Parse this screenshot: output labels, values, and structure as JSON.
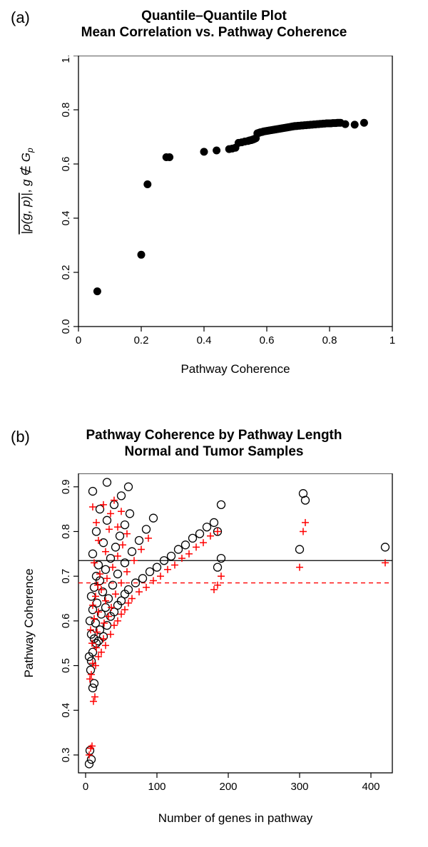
{
  "panelA": {
    "label": "(a)",
    "label_fontsize": 22,
    "title_line1": "Quantile–Quantile Plot",
    "title_line2": "Mean Correlation vs. Pathway Coherence",
    "title_fontsize": 19,
    "xlabel": "Pathway Coherence",
    "ylabel_prefix": "|ρ(g, p)|",
    "ylabel_middle": ", ",
    "ylabel_g": "g",
    "ylabel_notin": " ∉ ",
    "ylabel_Gp": "G",
    "ylabel_Gp_sub": "p",
    "label_fontsize_axis": 17,
    "tick_fontsize": 15,
    "xlim": [
      0,
      1
    ],
    "ylim": [
      0,
      1
    ],
    "xticks": [
      0.0,
      0.2,
      0.4,
      0.6,
      0.8,
      1.0
    ],
    "yticks": [
      0.0,
      0.2,
      0.4,
      0.6,
      0.8,
      1.0
    ],
    "point_color": "#000000",
    "point_radius": 5.5,
    "bg": "#ffffff",
    "box_color": "#000000",
    "points": [
      [
        0.06,
        0.13
      ],
      [
        0.2,
        0.265
      ],
      [
        0.22,
        0.525
      ],
      [
        0.28,
        0.625
      ],
      [
        0.29,
        0.625
      ],
      [
        0.4,
        0.645
      ],
      [
        0.44,
        0.65
      ],
      [
        0.48,
        0.655
      ],
      [
        0.49,
        0.657
      ],
      [
        0.5,
        0.66
      ],
      [
        0.51,
        0.678
      ],
      [
        0.52,
        0.68
      ],
      [
        0.53,
        0.683
      ],
      [
        0.54,
        0.685
      ],
      [
        0.545,
        0.687
      ],
      [
        0.55,
        0.688
      ],
      [
        0.555,
        0.69
      ],
      [
        0.56,
        0.692
      ],
      [
        0.565,
        0.695
      ],
      [
        0.57,
        0.713
      ],
      [
        0.575,
        0.715
      ],
      [
        0.58,
        0.717
      ],
      [
        0.585,
        0.718
      ],
      [
        0.59,
        0.72
      ],
      [
        0.595,
        0.721
      ],
      [
        0.6,
        0.722
      ],
      [
        0.605,
        0.723
      ],
      [
        0.61,
        0.724
      ],
      [
        0.615,
        0.725
      ],
      [
        0.62,
        0.726
      ],
      [
        0.625,
        0.727
      ],
      [
        0.63,
        0.728
      ],
      [
        0.635,
        0.729
      ],
      [
        0.64,
        0.73
      ],
      [
        0.645,
        0.731
      ],
      [
        0.65,
        0.732
      ],
      [
        0.655,
        0.733
      ],
      [
        0.66,
        0.734
      ],
      [
        0.665,
        0.735
      ],
      [
        0.67,
        0.736
      ],
      [
        0.675,
        0.737
      ],
      [
        0.68,
        0.738
      ],
      [
        0.685,
        0.739
      ],
      [
        0.69,
        0.74
      ],
      [
        0.695,
        0.74
      ],
      [
        0.7,
        0.741
      ],
      [
        0.705,
        0.741
      ],
      [
        0.71,
        0.742
      ],
      [
        0.715,
        0.742
      ],
      [
        0.72,
        0.743
      ],
      [
        0.725,
        0.743
      ],
      [
        0.73,
        0.744
      ],
      [
        0.735,
        0.744
      ],
      [
        0.74,
        0.745
      ],
      [
        0.745,
        0.745
      ],
      [
        0.75,
        0.746
      ],
      [
        0.755,
        0.746
      ],
      [
        0.76,
        0.747
      ],
      [
        0.765,
        0.747
      ],
      [
        0.77,
        0.748
      ],
      [
        0.775,
        0.748
      ],
      [
        0.78,
        0.749
      ],
      [
        0.785,
        0.749
      ],
      [
        0.79,
        0.75
      ],
      [
        0.795,
        0.75
      ],
      [
        0.8,
        0.75
      ],
      [
        0.805,
        0.75
      ],
      [
        0.81,
        0.751
      ],
      [
        0.815,
        0.751
      ],
      [
        0.82,
        0.751
      ],
      [
        0.825,
        0.752
      ],
      [
        0.83,
        0.752
      ],
      [
        0.835,
        0.752
      ],
      [
        0.85,
        0.747
      ],
      [
        0.88,
        0.745
      ],
      [
        0.91,
        0.752
      ]
    ]
  },
  "panelB": {
    "label": "(b)",
    "label_fontsize": 22,
    "title_line1": "Pathway Coherence by Pathway Length",
    "title_line2": "Normal and Tumor Samples",
    "title_fontsize": 19,
    "xlabel": "Number of genes in pathway",
    "ylabel": "Pathway Coherence",
    "label_fontsize_axis": 17,
    "tick_fontsize": 15,
    "xlim": [
      -10,
      430
    ],
    "ylim": [
      0.26,
      0.93
    ],
    "xticks": [
      0,
      100,
      200,
      300,
      400
    ],
    "yticks": [
      0.3,
      0.4,
      0.5,
      0.6,
      0.7,
      0.8,
      0.9
    ],
    "bg": "#ffffff",
    "box_color": "#000000",
    "circle_color": "#000000",
    "circle_radius": 5.5,
    "circle_stroke": 1.3,
    "plus_color": "#ff0000",
    "plus_size": 10,
    "plus_stroke": 1.5,
    "hline_black": 0.735,
    "hline_red": 0.685,
    "hline_red_dash": "6,5",
    "circles": [
      [
        5,
        0.28
      ],
      [
        8,
        0.29
      ],
      [
        6,
        0.31
      ],
      [
        10,
        0.45
      ],
      [
        12,
        0.46
      ],
      [
        7,
        0.49
      ],
      [
        8,
        0.51
      ],
      [
        5,
        0.52
      ],
      [
        10,
        0.53
      ],
      [
        15,
        0.55
      ],
      [
        18,
        0.555
      ],
      [
        12,
        0.56
      ],
      [
        25,
        0.565
      ],
      [
        8,
        0.57
      ],
      [
        20,
        0.58
      ],
      [
        30,
        0.59
      ],
      [
        14,
        0.595
      ],
      [
        6,
        0.6
      ],
      [
        35,
        0.61
      ],
      [
        22,
        0.615
      ],
      [
        40,
        0.62
      ],
      [
        10,
        0.625
      ],
      [
        28,
        0.63
      ],
      [
        45,
        0.635
      ],
      [
        16,
        0.64
      ],
      [
        50,
        0.645
      ],
      [
        32,
        0.65
      ],
      [
        8,
        0.655
      ],
      [
        55,
        0.66
      ],
      [
        24,
        0.665
      ],
      [
        60,
        0.67
      ],
      [
        12,
        0.675
      ],
      [
        38,
        0.68
      ],
      [
        70,
        0.685
      ],
      [
        20,
        0.69
      ],
      [
        80,
        0.695
      ],
      [
        15,
        0.7
      ],
      [
        45,
        0.705
      ],
      [
        90,
        0.71
      ],
      [
        28,
        0.715
      ],
      [
        100,
        0.72
      ],
      [
        18,
        0.725
      ],
      [
        55,
        0.73
      ],
      [
        110,
        0.735
      ],
      [
        35,
        0.74
      ],
      [
        120,
        0.745
      ],
      [
        10,
        0.75
      ],
      [
        65,
        0.755
      ],
      [
        130,
        0.76
      ],
      [
        42,
        0.765
      ],
      [
        140,
        0.77
      ],
      [
        25,
        0.775
      ],
      [
        75,
        0.78
      ],
      [
        150,
        0.785
      ],
      [
        48,
        0.79
      ],
      [
        160,
        0.795
      ],
      [
        15,
        0.8
      ],
      [
        85,
        0.805
      ],
      [
        170,
        0.81
      ],
      [
        55,
        0.815
      ],
      [
        180,
        0.82
      ],
      [
        30,
        0.825
      ],
      [
        95,
        0.83
      ],
      [
        62,
        0.84
      ],
      [
        20,
        0.85
      ],
      [
        40,
        0.86
      ],
      [
        50,
        0.88
      ],
      [
        10,
        0.89
      ],
      [
        60,
        0.9
      ],
      [
        30,
        0.91
      ],
      [
        185,
        0.72
      ],
      [
        190,
        0.74
      ],
      [
        185,
        0.8
      ],
      [
        190,
        0.86
      ],
      [
        300,
        0.76
      ],
      [
        305,
        0.885
      ],
      [
        308,
        0.87
      ],
      [
        420,
        0.765
      ]
    ],
    "plusses": [
      [
        5,
        0.3
      ],
      [
        7,
        0.315
      ],
      [
        9,
        0.32
      ],
      [
        11,
        0.42
      ],
      [
        13,
        0.43
      ],
      [
        6,
        0.47
      ],
      [
        8,
        0.48
      ],
      [
        14,
        0.5
      ],
      [
        10,
        0.505
      ],
      [
        18,
        0.52
      ],
      [
        22,
        0.53
      ],
      [
        15,
        0.54
      ],
      [
        28,
        0.545
      ],
      [
        9,
        0.55
      ],
      [
        25,
        0.56
      ],
      [
        35,
        0.57
      ],
      [
        16,
        0.575
      ],
      [
        7,
        0.58
      ],
      [
        40,
        0.59
      ],
      [
        26,
        0.595
      ],
      [
        45,
        0.6
      ],
      [
        12,
        0.605
      ],
      [
        32,
        0.61
      ],
      [
        50,
        0.615
      ],
      [
        18,
        0.62
      ],
      [
        55,
        0.625
      ],
      [
        36,
        0.63
      ],
      [
        10,
        0.635
      ],
      [
        60,
        0.64
      ],
      [
        28,
        0.645
      ],
      [
        65,
        0.65
      ],
      [
        14,
        0.655
      ],
      [
        42,
        0.66
      ],
      [
        75,
        0.665
      ],
      [
        22,
        0.67
      ],
      [
        85,
        0.675
      ],
      [
        17,
        0.68
      ],
      [
        50,
        0.685
      ],
      [
        95,
        0.69
      ],
      [
        30,
        0.695
      ],
      [
        105,
        0.7
      ],
      [
        20,
        0.705
      ],
      [
        58,
        0.71
      ],
      [
        115,
        0.715
      ],
      [
        38,
        0.72
      ],
      [
        125,
        0.725
      ],
      [
        12,
        0.73
      ],
      [
        68,
        0.735
      ],
      [
        135,
        0.74
      ],
      [
        45,
        0.745
      ],
      [
        145,
        0.75
      ],
      [
        28,
        0.755
      ],
      [
        78,
        0.76
      ],
      [
        155,
        0.765
      ],
      [
        52,
        0.77
      ],
      [
        165,
        0.775
      ],
      [
        18,
        0.78
      ],
      [
        88,
        0.785
      ],
      [
        175,
        0.79
      ],
      [
        58,
        0.795
      ],
      [
        185,
        0.8
      ],
      [
        33,
        0.805
      ],
      [
        45,
        0.81
      ],
      [
        15,
        0.82
      ],
      [
        35,
        0.84
      ],
      [
        25,
        0.86
      ],
      [
        50,
        0.845
      ],
      [
        10,
        0.855
      ],
      [
        40,
        0.87
      ],
      [
        185,
        0.68
      ],
      [
        190,
        0.7
      ],
      [
        180,
        0.67
      ],
      [
        300,
        0.72
      ],
      [
        305,
        0.8
      ],
      [
        308,
        0.82
      ],
      [
        420,
        0.73
      ]
    ]
  }
}
